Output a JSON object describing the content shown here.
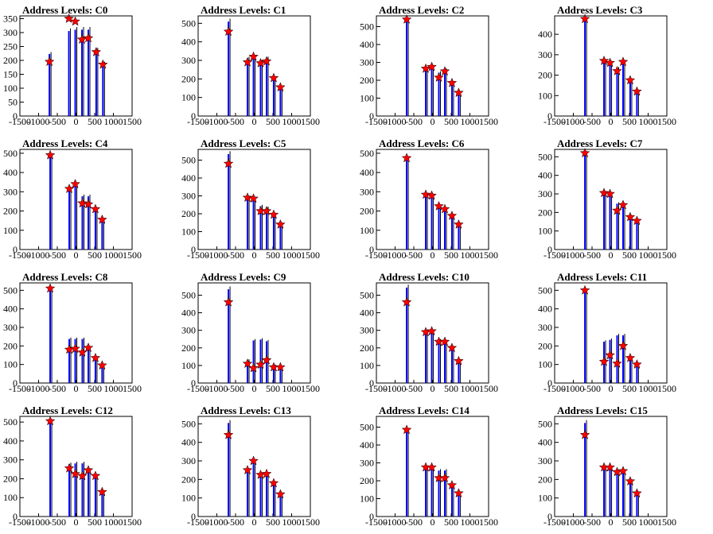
{
  "colors": {
    "histogram": "#0000ff",
    "raw": "#000000",
    "peak_marker": "#ff0000",
    "peak_marker_outline": "#000000",
    "axis": "#000000"
  },
  "chart_data": [
    {
      "type": "bar",
      "title": "Address Levels: C0",
      "xlim": [
        -1500,
        1500
      ],
      "ylim": [
        0,
        360
      ],
      "xticks": [
        -1500,
        -1000,
        -500,
        0,
        500,
        1000,
        1500
      ],
      "yticks": [
        0,
        50,
        100,
        150,
        200,
        250,
        300,
        350
      ],
      "peaks_x": [
        -710,
        -190,
        -20,
        160,
        330,
        540,
        720
      ],
      "peaks_y": [
        195,
        350,
        340,
        275,
        280,
        230,
        185
      ],
      "bins_x": [
        -710,
        -190,
        -20,
        160,
        330,
        540,
        720
      ],
      "bins_y": [
        230,
        315,
        320,
        320,
        320,
        245,
        195
      ]
    },
    {
      "type": "bar",
      "title": "Address Levels: C1",
      "xlim": [
        -1500,
        1500
      ],
      "ylim": [
        0,
        540
      ],
      "xticks": [
        -1500,
        -1000,
        -500,
        0,
        500,
        1000,
        1500
      ],
      "yticks": [
        0,
        100,
        200,
        300,
        400,
        500
      ],
      "peaks_x": [
        -690,
        -180,
        -20,
        170,
        330,
        520,
        700
      ],
      "peaks_y": [
        455,
        290,
        320,
        285,
        295,
        205,
        155
      ],
      "bins_x": [
        -690,
        -180,
        -20,
        170,
        330,
        520,
        700
      ],
      "bins_y": [
        525,
        320,
        330,
        300,
        320,
        210,
        160
      ]
    },
    {
      "type": "bar",
      "title": "Address Levels: C2",
      "xlim": [
        -1500,
        1500
      ],
      "ylim": [
        0,
        560
      ],
      "xticks": [
        -1500,
        -1000,
        -500,
        0,
        500,
        1000,
        1500
      ],
      "yticks": [
        0,
        100,
        200,
        300,
        400,
        500
      ],
      "peaks_x": [
        -690,
        -180,
        -20,
        170,
        330,
        520,
        700
      ],
      "peaks_y": [
        540,
        265,
        275,
        215,
        250,
        185,
        130
      ],
      "bins_x": [
        -690,
        -180,
        -20,
        170,
        330,
        520,
        700
      ],
      "bins_y": [
        545,
        270,
        280,
        250,
        265,
        195,
        140
      ]
    },
    {
      "type": "bar",
      "title": "Address Levels: C3",
      "xlim": [
        -1500,
        1500
      ],
      "ylim": [
        0,
        490
      ],
      "xticks": [
        -1500,
        -1000,
        -500,
        0,
        500,
        1000,
        1500
      ],
      "yticks": [
        0,
        100,
        200,
        300,
        400
      ],
      "peaks_x": [
        -690,
        -180,
        -20,
        170,
        330,
        520,
        700
      ],
      "peaks_y": [
        475,
        270,
        260,
        220,
        265,
        175,
        120
      ],
      "bins_x": [
        -690,
        -180,
        -20,
        170,
        330,
        520,
        700
      ],
      "bins_y": [
        480,
        275,
        270,
        240,
        265,
        180,
        125
      ]
    },
    {
      "type": "bar",
      "title": "Address Levels: C4",
      "xlim": [
        -1500,
        1500
      ],
      "ylim": [
        0,
        520
      ],
      "xticks": [
        -1500,
        -1000,
        -500,
        0,
        500,
        1000,
        1500
      ],
      "yticks": [
        0,
        100,
        200,
        300,
        400,
        500
      ],
      "peaks_x": [
        -690,
        -180,
        -20,
        170,
        330,
        520,
        700
      ],
      "peaks_y": [
        490,
        315,
        340,
        240,
        235,
        210,
        155
      ],
      "bins_x": [
        -690,
        -180,
        -20,
        170,
        330,
        520,
        700
      ],
      "bins_y": [
        495,
        325,
        345,
        285,
        285,
        215,
        160
      ]
    },
    {
      "type": "bar",
      "title": "Address Levels: C5",
      "xlim": [
        -1500,
        1500
      ],
      "ylim": [
        0,
        560
      ],
      "xticks": [
        -1500,
        -1000,
        -500,
        0,
        500,
        1000,
        1500
      ],
      "yticks": [
        0,
        100,
        200,
        300,
        400,
        500
      ],
      "peaks_x": [
        -690,
        -180,
        -20,
        170,
        330,
        520,
        700
      ],
      "peaks_y": [
        480,
        290,
        285,
        215,
        215,
        195,
        140
      ],
      "bins_x": [
        -690,
        -180,
        -20,
        170,
        330,
        520,
        700
      ],
      "bins_y": [
        550,
        300,
        295,
        250,
        240,
        200,
        145
      ]
    },
    {
      "type": "bar",
      "title": "Address Levels: C6",
      "xlim": [
        -1500,
        1500
      ],
      "ylim": [
        0,
        520
      ],
      "xticks": [
        -1500,
        -1000,
        -500,
        0,
        500,
        1000,
        1500
      ],
      "yticks": [
        0,
        100,
        200,
        300,
        400,
        500
      ],
      "peaks_x": [
        -690,
        -180,
        -20,
        170,
        330,
        520,
        700
      ],
      "peaks_y": [
        475,
        285,
        280,
        225,
        210,
        175,
        130
      ],
      "bins_x": [
        -690,
        -180,
        -20,
        170,
        330,
        520,
        700
      ],
      "bins_y": [
        485,
        290,
        290,
        230,
        215,
        180,
        135
      ]
    },
    {
      "type": "bar",
      "title": "Address Levels: C7",
      "xlim": [
        -1500,
        1500
      ],
      "ylim": [
        0,
        540
      ],
      "xticks": [
        -1500,
        -1000,
        -500,
        0,
        500,
        1000,
        1500
      ],
      "yticks": [
        0,
        100,
        200,
        300,
        400,
        500
      ],
      "peaks_x": [
        -690,
        -180,
        -20,
        170,
        330,
        520,
        700
      ],
      "peaks_y": [
        520,
        305,
        300,
        210,
        240,
        175,
        155
      ],
      "bins_x": [
        -690,
        -180,
        -20,
        170,
        330,
        520,
        700
      ],
      "bins_y": [
        525,
        310,
        300,
        255,
        250,
        185,
        160
      ]
    },
    {
      "type": "bar",
      "title": "Address Levels: C8",
      "xlim": [
        -1500,
        1500
      ],
      "ylim": [
        0,
        540
      ],
      "xticks": [
        -1500,
        -1000,
        -500,
        0,
        500,
        1000,
        1500
      ],
      "yticks": [
        0,
        100,
        200,
        300,
        400,
        500
      ],
      "peaks_x": [
        -690,
        -180,
        -20,
        170,
        330,
        520,
        700
      ],
      "peaks_y": [
        510,
        180,
        185,
        165,
        190,
        135,
        95
      ],
      "bins_x": [
        -690,
        -180,
        -20,
        170,
        330,
        520,
        700
      ],
      "bins_y": [
        515,
        245,
        245,
        245,
        195,
        140,
        100
      ]
    },
    {
      "type": "bar",
      "title": "Address Levels: C9",
      "xlim": [
        -1500,
        1500
      ],
      "ylim": [
        0,
        570
      ],
      "xticks": [
        -1500,
        -1000,
        -500,
        0,
        500,
        1000,
        1500
      ],
      "yticks": [
        0,
        100,
        200,
        300,
        400,
        500
      ],
      "peaks_x": [
        -690,
        -180,
        -20,
        170,
        330,
        520,
        700
      ],
      "peaks_y": [
        460,
        110,
        85,
        105,
        130,
        90,
        90
      ],
      "bins_x": [
        -690,
        -180,
        -20,
        170,
        330,
        520,
        700
      ],
      "bins_y": [
        550,
        135,
        250,
        255,
        245,
        105,
        95
      ]
    },
    {
      "type": "bar",
      "title": "Address Levels: C10",
      "xlim": [
        -1500,
        1500
      ],
      "ylim": [
        0,
        570
      ],
      "xticks": [
        -1500,
        -1000,
        -500,
        0,
        500,
        1000,
        1500
      ],
      "yticks": [
        0,
        100,
        200,
        300,
        400,
        500
      ],
      "peaks_x": [
        -690,
        -180,
        -20,
        170,
        330,
        520,
        700
      ],
      "peaks_y": [
        460,
        290,
        295,
        235,
        235,
        200,
        125
      ],
      "bins_x": [
        -690,
        -180,
        -20,
        170,
        330,
        520,
        700
      ],
      "bins_y": [
        560,
        300,
        300,
        250,
        245,
        205,
        130
      ]
    },
    {
      "type": "bar",
      "title": "Address Levels: C11",
      "xlim": [
        -1500,
        1500
      ],
      "ylim": [
        0,
        540
      ],
      "xticks": [
        -1500,
        -1000,
        -500,
        0,
        500,
        1000,
        1500
      ],
      "yticks": [
        0,
        100,
        200,
        300,
        400,
        500
      ],
      "peaks_x": [
        -690,
        -180,
        -20,
        170,
        330,
        520,
        700
      ],
      "peaks_y": [
        500,
        115,
        150,
        105,
        200,
        135,
        100
      ],
      "bins_x": [
        -690,
        -180,
        -20,
        170,
        330,
        520,
        700
      ],
      "bins_y": [
        505,
        230,
        240,
        265,
        265,
        140,
        105
      ]
    },
    {
      "type": "bar",
      "title": "Address Levels: C12",
      "xlim": [
        -1500,
        1500
      ],
      "ylim": [
        0,
        530
      ],
      "xticks": [
        -1500,
        -1000,
        -500,
        0,
        500,
        1000,
        1500
      ],
      "yticks": [
        0,
        100,
        200,
        300,
        400,
        500
      ],
      "peaks_x": [
        -690,
        -180,
        -20,
        170,
        330,
        520,
        700
      ],
      "peaks_y": [
        505,
        255,
        225,
        215,
        245,
        215,
        130
      ],
      "bins_x": [
        -690,
        -180,
        -20,
        170,
        330,
        520,
        700
      ],
      "bins_y": [
        510,
        285,
        290,
        290,
        255,
        220,
        135
      ]
    },
    {
      "type": "bar",
      "title": "Address Levels: C13",
      "xlim": [
        -1500,
        1500
      ],
      "ylim": [
        0,
        540
      ],
      "xticks": [
        -1500,
        -1000,
        -500,
        0,
        500,
        1000,
        1500
      ],
      "yticks": [
        0,
        100,
        200,
        300,
        400,
        500
      ],
      "peaks_x": [
        -690,
        -180,
        -20,
        170,
        330,
        520,
        700
      ],
      "peaks_y": [
        440,
        250,
        300,
        225,
        230,
        180,
        120
      ],
      "bins_x": [
        -690,
        -180,
        -20,
        170,
        330,
        520,
        700
      ],
      "bins_y": [
        520,
        260,
        305,
        230,
        235,
        185,
        125
      ]
    },
    {
      "type": "bar",
      "title": "Address Levels: C14",
      "xlim": [
        -1500,
        1500
      ],
      "ylim": [
        0,
        560
      ],
      "xticks": [
        -1500,
        -1000,
        -500,
        0,
        500,
        1000,
        1500
      ],
      "yticks": [
        0,
        100,
        200,
        300,
        400,
        500
      ],
      "peaks_x": [
        -690,
        -180,
        -20,
        170,
        330,
        520,
        700
      ],
      "peaks_y": [
        485,
        275,
        275,
        215,
        215,
        175,
        130
      ],
      "bins_x": [
        -690,
        -180,
        -20,
        170,
        330,
        520,
        700
      ],
      "bins_y": [
        490,
        280,
        280,
        265,
        265,
        180,
        135
      ]
    },
    {
      "type": "bar",
      "title": "Address Levels: C15",
      "xlim": [
        -1500,
        1500
      ],
      "ylim": [
        0,
        540
      ],
      "xticks": [
        -1500,
        -1000,
        -500,
        0,
        500,
        1000,
        1500
      ],
      "yticks": [
        0,
        100,
        200,
        300,
        400,
        500
      ],
      "peaks_x": [
        -690,
        -180,
        -20,
        170,
        330,
        520,
        700
      ],
      "peaks_y": [
        440,
        265,
        265,
        240,
        245,
        190,
        125
      ],
      "bins_x": [
        -690,
        -180,
        -20,
        170,
        330,
        520,
        700
      ],
      "bins_y": [
        520,
        270,
        270,
        250,
        250,
        195,
        130
      ]
    }
  ]
}
